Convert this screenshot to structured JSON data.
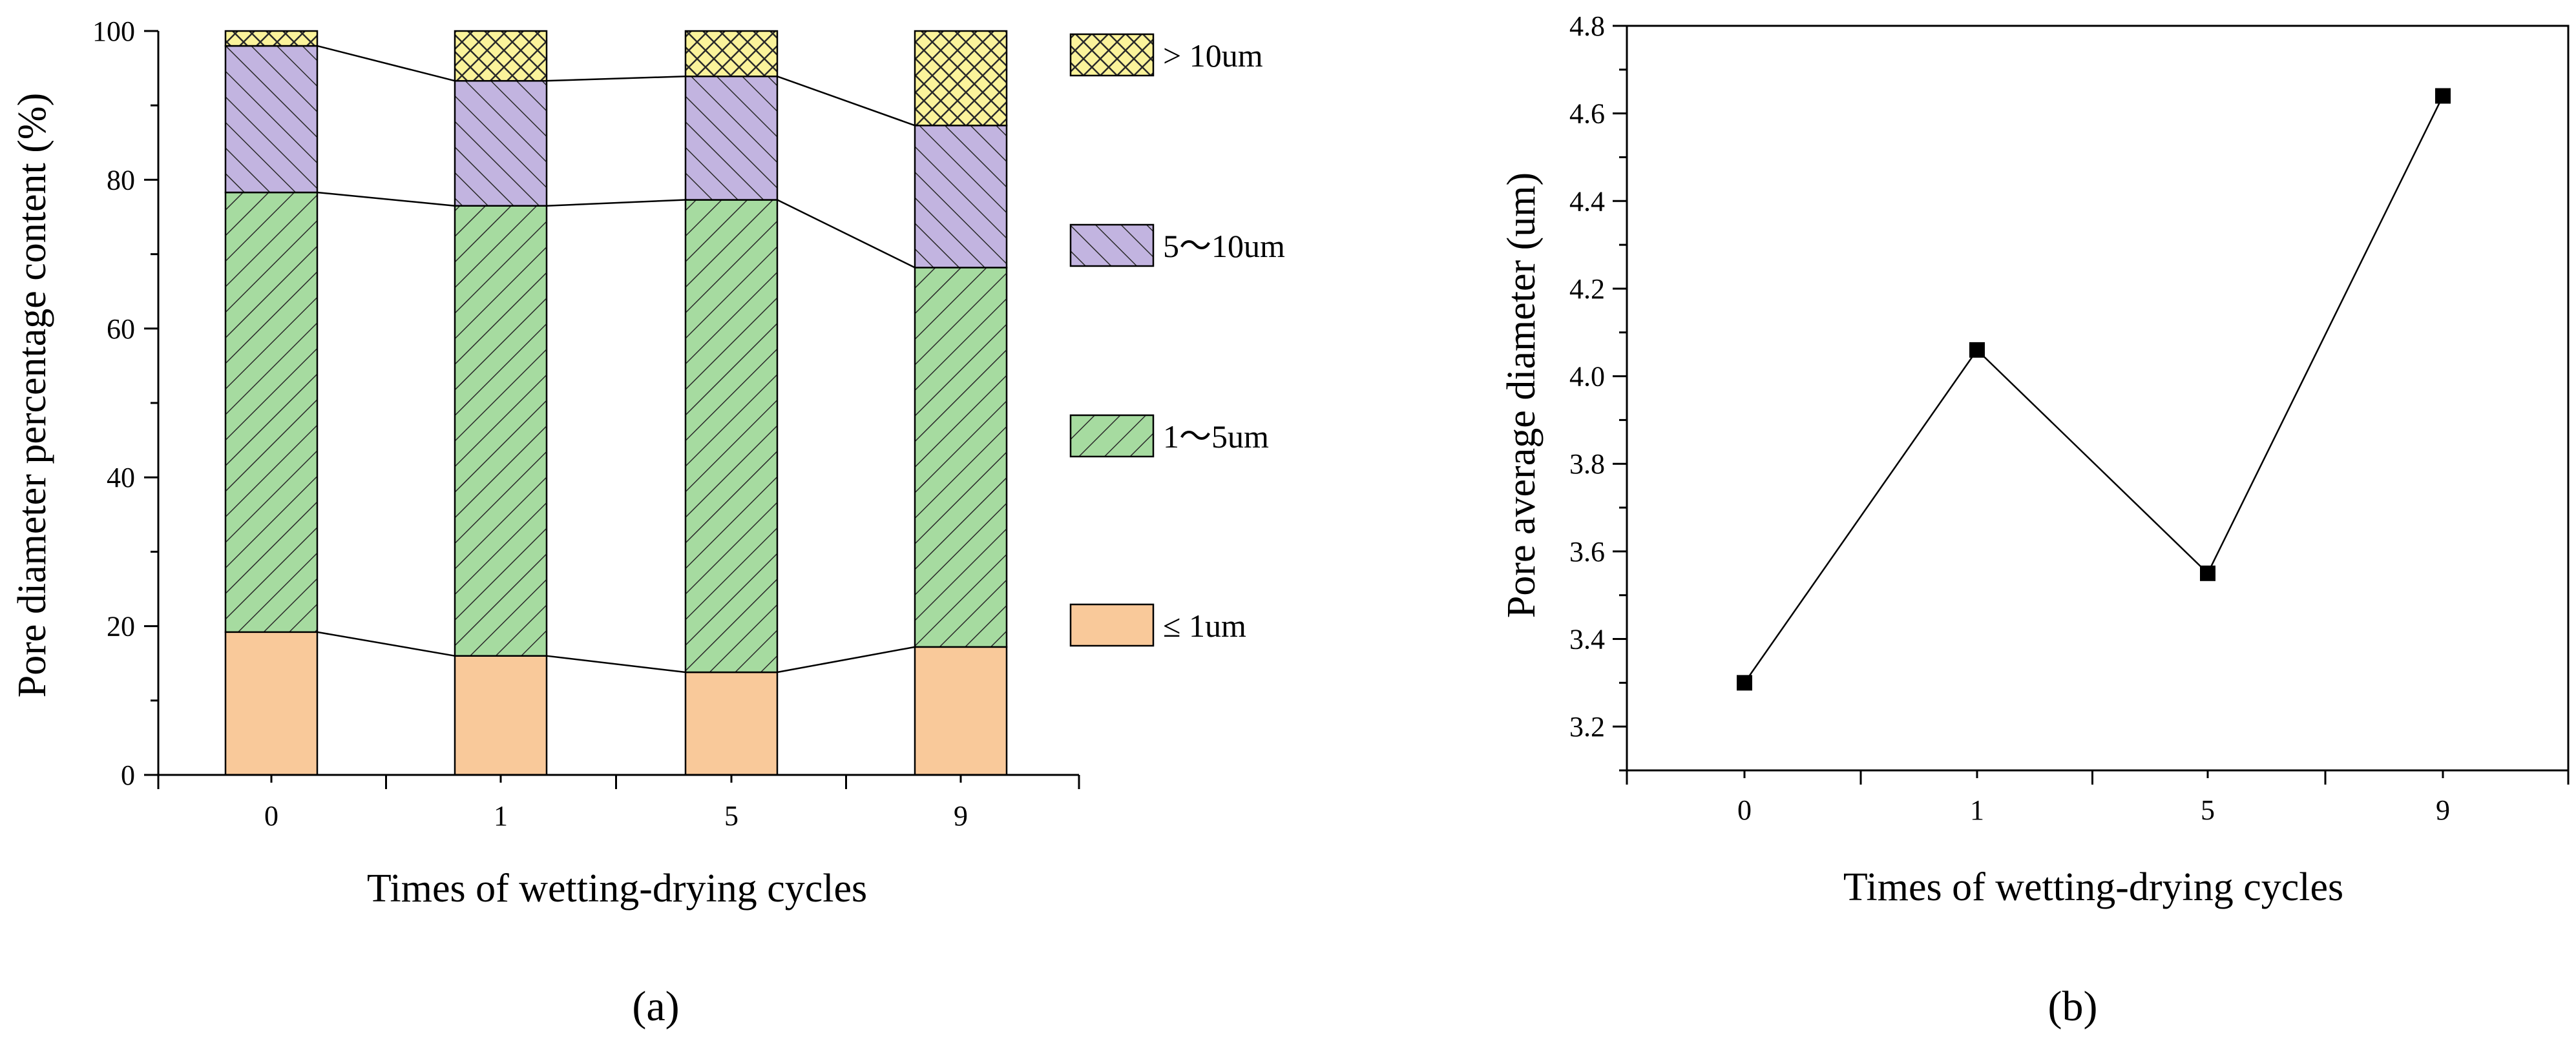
{
  "chart_data": [
    {
      "panel_label": "(a)",
      "type": "bar",
      "stacked": true,
      "categories": [
        "0",
        "1",
        "5",
        "9"
      ],
      "xlabel": "Times of wetting-drying cycles",
      "ylabel": "Pore diameter percentage content (%)",
      "ylim": [
        0,
        100
      ],
      "yticks": [
        "0",
        "20",
        "40",
        "60",
        "80",
        "100"
      ],
      "series": [
        {
          "name": "≤ 1um",
          "color": "#f9c99a",
          "pattern": "none",
          "values": [
            19.2,
            16.0,
            13.8,
            17.2
          ]
        },
        {
          "name": "1～5um",
          "color": "#a6dba0",
          "pattern": "hatch",
          "values": [
            59.1,
            60.5,
            63.5,
            51.0
          ]
        },
        {
          "name": "5～10um",
          "color": "#c2b4e0",
          "pattern": "hatch",
          "values": [
            19.7,
            16.8,
            16.6,
            19.1
          ]
        },
        {
          "name": "> 10um",
          "color": "#fbf39b",
          "pattern": "crosshatch",
          "values": [
            2.0,
            6.7,
            6.1,
            12.7
          ]
        }
      ],
      "legend_position": "right",
      "connector_lines": true
    },
    {
      "panel_label": "(b)",
      "type": "line",
      "categories": [
        "0",
        "1",
        "5",
        "9"
      ],
      "values": [
        3.3,
        4.06,
        3.55,
        4.64
      ],
      "xlabel": "Times of wetting-drying cycles",
      "ylabel": "Pore average diameter (um)",
      "ylim": [
        3.1,
        4.8
      ],
      "yticks": [
        "3.2",
        "3.4",
        "3.6",
        "3.8",
        "4.0",
        "4.2",
        "4.4",
        "4.6",
        "4.8"
      ],
      "marker": "square",
      "color": "#000000"
    }
  ]
}
